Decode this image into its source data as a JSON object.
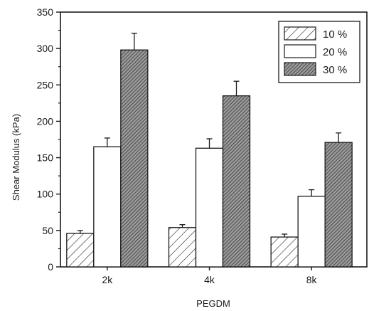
{
  "chart_data": {
    "type": "bar",
    "title": "",
    "xlabel": "PEGDM",
    "ylabel": "Shear Modulus (kPa)",
    "categories": [
      "2k",
      "4k",
      "8k"
    ],
    "ylim": [
      0,
      350
    ],
    "yticks": [
      0,
      50,
      100,
      150,
      200,
      250,
      300,
      350
    ],
    "grid": false,
    "legend_position": "top-right",
    "series": [
      {
        "name": "10 %",
        "fill": "sparse-hatch",
        "values": [
          46,
          54,
          41
        ],
        "errors": [
          4,
          4,
          4
        ]
      },
      {
        "name": "20 %",
        "fill": "white",
        "values": [
          165,
          163,
          97
        ],
        "errors": [
          12,
          13,
          9
        ]
      },
      {
        "name": "30 %",
        "fill": "dense-hatch",
        "values": [
          298,
          235,
          171
        ],
        "errors": [
          23,
          20,
          13
        ]
      }
    ]
  }
}
